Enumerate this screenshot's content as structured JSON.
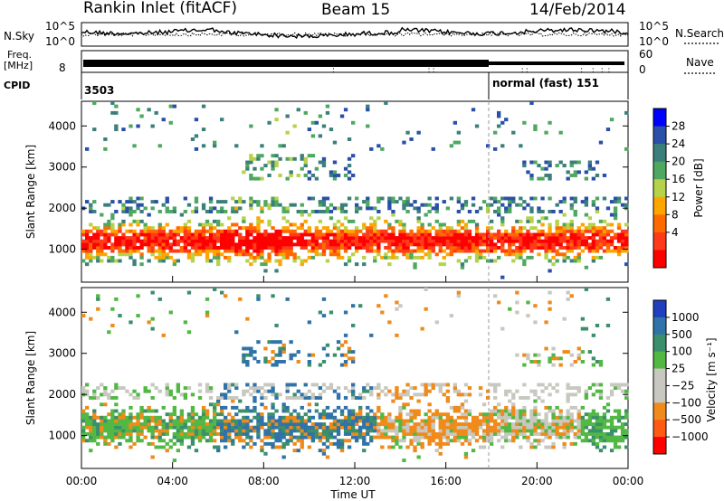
{
  "header": {
    "station": "Rankin Inlet (fitACF)",
    "beam": "Beam 15",
    "date": "14/Feb/2014"
  },
  "strips": {
    "noise_label": "N.Sky",
    "noise_right_label": "N.Search",
    "noise_ticks": [
      "10^5",
      "10^0"
    ],
    "freq_label_1": "Freq.",
    "freq_label_2": "[MHz]",
    "freq_tick": "8",
    "nave_label": "Nave",
    "nave_ticks": [
      "60",
      "0"
    ],
    "cpid_label": "CPID",
    "cpid_1": "3503",
    "cpid_2": "normal (fast) 151",
    "cpid_change_hour": 18.0
  },
  "colors": {
    "power": [
      "#0000ff",
      "#2a4fa8",
      "#3c7f7a",
      "#4ea860",
      "#b6d24a",
      "#ffa500",
      "#ff6a00",
      "#ff3a1a",
      "#ff0000"
    ],
    "velocity": [
      "#1f3fbf",
      "#2f73a8",
      "#3b8f6a",
      "#52b844",
      "#c8c8c0",
      "#c8c8c0",
      "#f08a1a",
      "#ff5a14",
      "#ff0000"
    ]
  },
  "chart_data": [
    {
      "type": "heatmap",
      "name": "power",
      "ylabel": "Slant Range [km]",
      "ylim": [
        200,
        4600
      ],
      "yticks": [
        1000,
        2000,
        3000,
        4000
      ],
      "xlim": [
        0,
        24
      ],
      "xticks": [
        "00:00",
        "04:00",
        "08:00",
        "12:00",
        "16:00",
        "20:00",
        "00:00"
      ],
      "colorbar": {
        "label": "Power [dB]",
        "ticks": [
          "28",
          "24",
          "20",
          "16",
          "12",
          "8",
          "4"
        ]
      }
    },
    {
      "type": "heatmap",
      "name": "velocity",
      "ylabel": "Slant Range [km]",
      "ylim": [
        200,
        4600
      ],
      "yticks": [
        1000,
        2000,
        3000,
        4000
      ],
      "xlim": [
        0,
        24
      ],
      "xticks": [
        "00:00",
        "04:00",
        "08:00",
        "12:00",
        "16:00",
        "20:00",
        "00:00"
      ],
      "xlabel": "Time UT",
      "colorbar": {
        "label": "Velocity [m s⁻¹]",
        "ticks": [
          "1000",
          "500",
          "100",
          "25",
          "−25",
          "−100",
          "−500",
          "−1000"
        ]
      }
    }
  ]
}
